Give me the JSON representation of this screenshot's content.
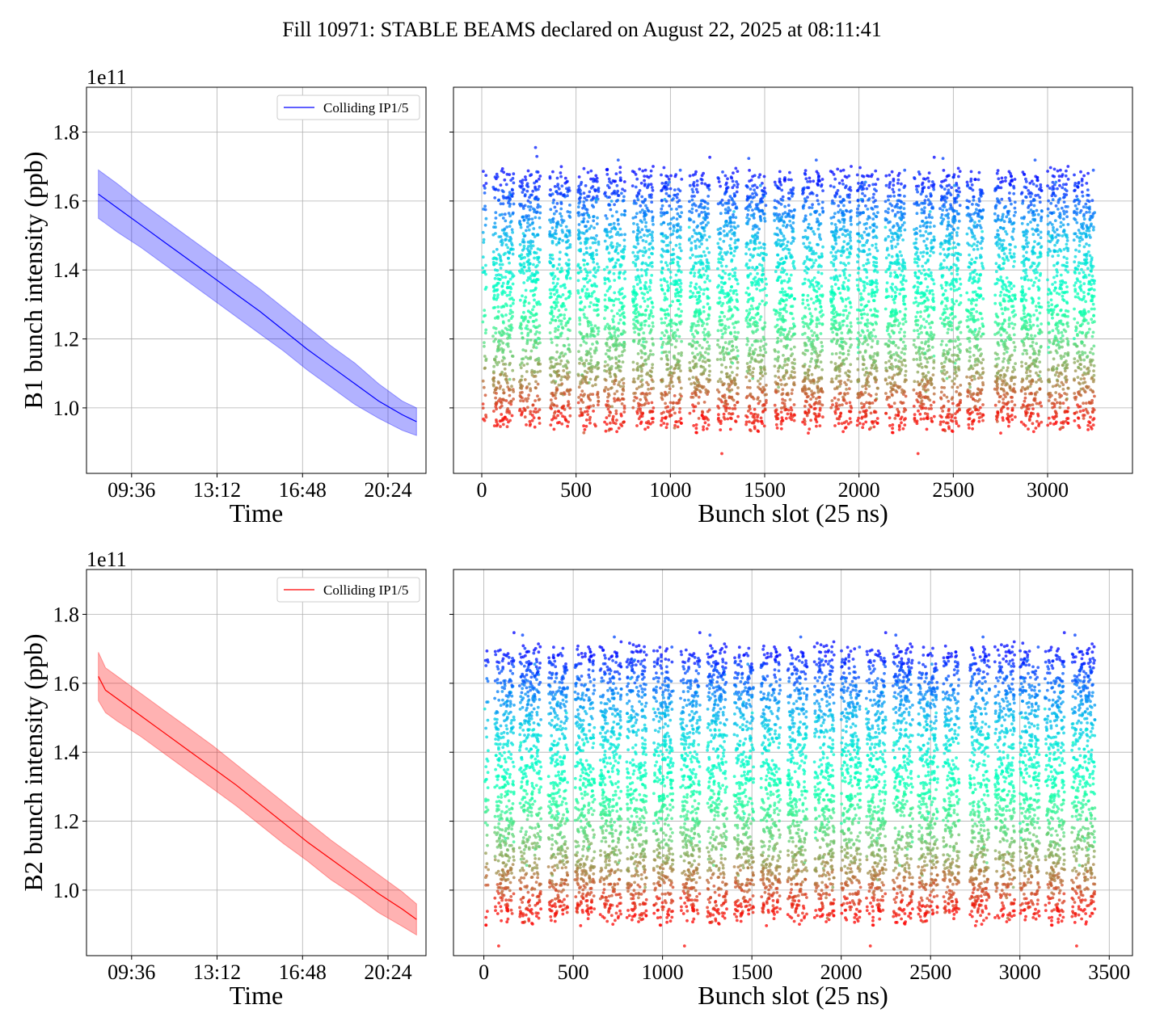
{
  "title": "Fill 10971: STABLE BEAMS declared on August 22, 2025 at 08:11:41",
  "colors": {
    "b1": "#0000ff",
    "b2": "#ff0000",
    "grid": "#b0b0b0"
  },
  "chart_data": [
    {
      "id": "b1-time",
      "type": "area",
      "xlabel": "Time",
      "ylabel": "B1 bunch intensity (ppb)",
      "y_offset_text": "1e11",
      "x_unit": "hours",
      "xlim": [
        7.7,
        22.0
      ],
      "ylim": [
        0.81,
        1.93
      ],
      "xticks": [
        9.6,
        13.2,
        16.8,
        20.4
      ],
      "xtick_labels": [
        "09:36",
        "13:12",
        "16:48",
        "20:24"
      ],
      "yticks": [
        1.0,
        1.2,
        1.4,
        1.6,
        1.8
      ],
      "ytick_labels": [
        "1.0",
        "1.2",
        "1.4",
        "1.6",
        "1.8"
      ],
      "legend": {
        "label": "Colliding IP1/5",
        "placement": "upper right"
      },
      "grid": true,
      "series": [
        {
          "x": [
            8.2,
            9.0,
            10.0,
            11.0,
            12.0,
            13.0,
            14.0,
            15.0,
            16.0,
            17.0,
            18.0,
            19.0,
            20.0,
            21.0,
            21.6
          ],
          "y": [
            1.62,
            1.58,
            1.53,
            1.48,
            1.43,
            1.38,
            1.33,
            1.28,
            1.225,
            1.17,
            1.12,
            1.07,
            1.02,
            0.98,
            0.96
          ],
          "lower": [
            1.55,
            1.51,
            1.465,
            1.415,
            1.365,
            1.315,
            1.265,
            1.215,
            1.165,
            1.11,
            1.06,
            1.01,
            0.97,
            0.935,
            0.92
          ],
          "upper": [
            1.69,
            1.65,
            1.595,
            1.545,
            1.495,
            1.445,
            1.395,
            1.345,
            1.29,
            1.235,
            1.18,
            1.13,
            1.07,
            1.02,
            1.0
          ]
        }
      ]
    },
    {
      "id": "b1-slots",
      "type": "scatter",
      "xlabel": "Bunch slot (25 ns)",
      "xlim": [
        -150,
        3450
      ],
      "ylim": [
        0.81,
        1.93
      ],
      "xticks": [
        0,
        500,
        1000,
        1500,
        2000,
        2500,
        3000
      ],
      "yticks": [
        1.0,
        1.2,
        1.4,
        1.6,
        1.8
      ],
      "grid": true,
      "colormap": "rainbow",
      "y_range": [
        0.95,
        1.68
      ],
      "trains": [
        [
          0,
          40
        ],
        [
          60,
          170
        ],
        [
          200,
          310
        ],
        [
          360,
          470
        ],
        [
          510,
          620
        ],
        [
          650,
          760
        ],
        [
          800,
          910
        ],
        [
          950,
          1060
        ],
        [
          1100,
          1210
        ],
        [
          1250,
          1360
        ],
        [
          1400,
          1510
        ],
        [
          1550,
          1660
        ],
        [
          1700,
          1810
        ],
        [
          1850,
          1960
        ],
        [
          1990,
          2100
        ],
        [
          2140,
          2250
        ],
        [
          2290,
          2400
        ],
        [
          2430,
          2540
        ],
        [
          2570,
          2660
        ],
        [
          2720,
          2830
        ],
        [
          2860,
          2970
        ],
        [
          3000,
          3110
        ],
        [
          3140,
          3250
        ]
      ],
      "x_range": [
        0,
        3250
      ]
    },
    {
      "id": "b2-time",
      "type": "area",
      "xlabel": "Time",
      "ylabel": "B2 bunch intensity (ppb)",
      "y_offset_text": "1e11",
      "x_unit": "hours",
      "xlim": [
        7.7,
        22.0
      ],
      "ylim": [
        0.81,
        1.93
      ],
      "xticks": [
        9.6,
        13.2,
        16.8,
        20.4
      ],
      "xtick_labels": [
        "09:36",
        "13:12",
        "16:48",
        "20:24"
      ],
      "yticks": [
        1.0,
        1.2,
        1.4,
        1.6,
        1.8
      ],
      "ytick_labels": [
        "1.0",
        "1.2",
        "1.4",
        "1.6",
        "1.8"
      ],
      "legend": {
        "label": "Colliding IP1/5",
        "placement": "upper right"
      },
      "grid": true,
      "series": [
        {
          "x": [
            8.2,
            8.5,
            9.0,
            10.0,
            11.0,
            12.0,
            13.0,
            14.0,
            15.0,
            16.0,
            17.0,
            18.0,
            19.0,
            20.0,
            21.0,
            21.6
          ],
          "y": [
            1.62,
            1.58,
            1.555,
            1.505,
            1.455,
            1.405,
            1.355,
            1.305,
            1.25,
            1.195,
            1.14,
            1.09,
            1.04,
            0.99,
            0.945,
            0.915
          ],
          "lower": [
            1.55,
            1.515,
            1.49,
            1.445,
            1.395,
            1.345,
            1.295,
            1.245,
            1.19,
            1.135,
            1.085,
            1.03,
            0.985,
            0.935,
            0.895,
            0.87
          ],
          "upper": [
            1.69,
            1.645,
            1.62,
            1.57,
            1.52,
            1.47,
            1.42,
            1.365,
            1.31,
            1.255,
            1.2,
            1.145,
            1.095,
            1.045,
            0.995,
            0.96
          ]
        }
      ]
    },
    {
      "id": "b2-slots",
      "type": "scatter",
      "xlabel": "Bunch slot (25 ns)",
      "xlim": [
        -170,
        3630
      ],
      "ylim": [
        0.81,
        1.93
      ],
      "xticks": [
        0,
        500,
        1000,
        1500,
        2000,
        2500,
        3000,
        3500
      ],
      "yticks": [
        1.0,
        1.2,
        1.4,
        1.6,
        1.8
      ],
      "grid": true,
      "colormap": "rainbow",
      "y_range": [
        0.92,
        1.7
      ],
      "trains": [
        [
          0,
          40
        ],
        [
          60,
          170
        ],
        [
          200,
          320
        ],
        [
          360,
          470
        ],
        [
          510,
          620
        ],
        [
          650,
          770
        ],
        [
          800,
          910
        ],
        [
          950,
          1060
        ],
        [
          1100,
          1210
        ],
        [
          1250,
          1360
        ],
        [
          1400,
          1510
        ],
        [
          1550,
          1660
        ],
        [
          1700,
          1810
        ],
        [
          1850,
          1960
        ],
        [
          2000,
          2110
        ],
        [
          2140,
          2250
        ],
        [
          2290,
          2400
        ],
        [
          2430,
          2540
        ],
        [
          2570,
          2660
        ],
        [
          2720,
          2830
        ],
        [
          2860,
          2970
        ],
        [
          3000,
          3110
        ],
        [
          3140,
          3250
        ],
        [
          3290,
          3420
        ]
      ],
      "x_range": [
        0,
        3420
      ]
    }
  ]
}
